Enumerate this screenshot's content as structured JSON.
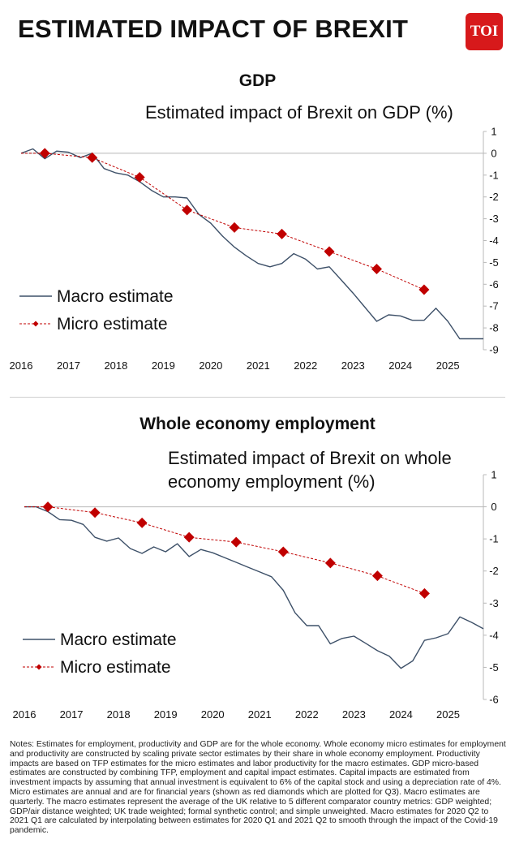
{
  "header": {
    "title": "ESTIMATED IMPACT OF BREXIT",
    "logo_text": "TOI"
  },
  "colors": {
    "macro": "#3d5068",
    "micro": "#c00000",
    "logo": "#d7191b"
  },
  "chart_data": [
    {
      "type": "line",
      "section_title": "GDP",
      "title": "Estimated impact of Brexit on GDP (%)",
      "xlim": [
        2016,
        2025.75
      ],
      "ylim": [
        -9,
        1
      ],
      "x_ticks": [
        "2016",
        "2017",
        "2018",
        "2019",
        "2020",
        "2021",
        "2022",
        "2023",
        "2024",
        "2025"
      ],
      "y_ticks": [
        "1",
        "0",
        "-1",
        "-2",
        "-3",
        "-4",
        "-5",
        "-6",
        "-7",
        "-8",
        "-9"
      ],
      "legend_position": "bottom-left",
      "series": [
        {
          "name": "Macro estimate",
          "style": "line",
          "x": [
            2016,
            2016.25,
            2016.5,
            2016.75,
            2017,
            2017.25,
            2017.5,
            2017.75,
            2018,
            2018.25,
            2018.5,
            2018.75,
            2019,
            2019.25,
            2019.5,
            2019.75,
            2020,
            2020.25,
            2020.5,
            2020.75,
            2021,
            2021.25,
            2021.5,
            2021.75,
            2022,
            2022.25,
            2022.5,
            2022.75,
            2023,
            2023.25,
            2023.5,
            2023.75,
            2024,
            2024.25,
            2024.5,
            2024.75,
            2025,
            2025.25,
            2025.5,
            2025.75
          ],
          "y": [
            0,
            0.2,
            -0.25,
            0.1,
            0.05,
            -0.2,
            0,
            -0.7,
            -0.9,
            -1.0,
            -1.3,
            -1.7,
            -2.0,
            -2.0,
            -2.05,
            -2.8,
            -3.2,
            -3.8,
            -4.3,
            -4.7,
            -5.05,
            -5.2,
            -5.05,
            -4.6,
            -4.85,
            -5.3,
            -5.2,
            -5.8,
            -6.4,
            -7.05,
            -7.7,
            -7.4,
            -7.45,
            -7.65,
            -7.65,
            -7.1,
            -7.7,
            -8.5,
            -8.5,
            -8.5
          ]
        },
        {
          "name": "Micro estimate",
          "style": "dashed-diamond",
          "x": [
            2016,
            2016.5,
            2017.5,
            2018.5,
            2019.5,
            2020.5,
            2021.5,
            2022.5,
            2023.5,
            2024.5
          ],
          "y": [
            0,
            0,
            -0.2,
            -1.1,
            -2.6,
            -3.4,
            -3.7,
            -4.5,
            -5.3,
            -6.25
          ]
        }
      ]
    },
    {
      "type": "line",
      "section_title": "Whole economy employment",
      "title_lines": [
        "Estimated impact of Brexit on whole",
        "economy employment (%)"
      ],
      "xlim": [
        2016,
        2025.75
      ],
      "ylim": [
        -6,
        1
      ],
      "x_ticks": [
        "2016",
        "2017",
        "2018",
        "2019",
        "2020",
        "2021",
        "2022",
        "2023",
        "2024",
        "2025"
      ],
      "y_ticks": [
        "1",
        "0",
        "-1",
        "-2",
        "-3",
        "-4",
        "-5",
        "-6"
      ],
      "legend_position": "bottom-left",
      "series": [
        {
          "name": "Macro estimate",
          "style": "line",
          "x": [
            2016,
            2016.25,
            2016.5,
            2016.75,
            2017,
            2017.25,
            2017.5,
            2017.75,
            2018,
            2018.25,
            2018.5,
            2018.75,
            2019,
            2019.25,
            2019.5,
            2019.75,
            2020,
            2020.25,
            2020.5,
            2020.75,
            2021,
            2021.25,
            2021.5,
            2021.75,
            2022,
            2022.25,
            2022.5,
            2022.75,
            2023,
            2023.25,
            2023.5,
            2023.75,
            2024,
            2024.25,
            2024.5,
            2024.75,
            2025,
            2025.25,
            2025.5,
            2025.75
          ],
          "y": [
            0,
            0,
            -0.15,
            -0.4,
            -0.42,
            -0.55,
            -0.95,
            -1.07,
            -0.97,
            -1.3,
            -1.45,
            -1.25,
            -1.4,
            -1.15,
            -1.55,
            -1.33,
            -1.43,
            -1.58,
            -1.73,
            -1.88,
            -2.03,
            -2.18,
            -2.6,
            -3.3,
            -3.7,
            -3.7,
            -4.27,
            -4.1,
            -4.03,
            -4.25,
            -4.48,
            -4.65,
            -5.03,
            -4.8,
            -4.16,
            -4.08,
            -3.95,
            -3.43,
            -3.6,
            -3.8
          ]
        },
        {
          "name": "Micro estimate",
          "style": "dashed-diamond",
          "x": [
            2016,
            2016.5,
            2017.5,
            2018.5,
            2019.5,
            2020.5,
            2021.5,
            2022.5,
            2023.5,
            2024.5
          ],
          "y": [
            0,
            0,
            -0.18,
            -0.5,
            -0.95,
            -1.1,
            -1.4,
            -1.75,
            -2.15,
            -2.7
          ]
        }
      ]
    }
  ],
  "notes": "Notes: Estimates for employment, productivity and GDP are for the whole economy. Whole economy micro estimates for employment and productivity are constructed by scaling private sector estimates by their share in whole economy employment. Productivity impacts are based on TFP estimates for the micro estimates and labor productivity for the macro estimates. GDP micro-based estimates are constructed by combining TFP, employment and capital impact estimates. Capital impacts are estimated from investment impacts by assuming that annual investment is equivalent to 6% of the capital stock and using a depreciation rate of 4%. Micro estimates are annual and are for financial years (shown as red diamonds which are plotted for Q3). Macro estimates are quarterly. The macro estimates represent the average of the UK relative to 5 different comparator country metrics: GDP weighted; GDP/air distance weighted; UK trade weighted; formal synthetic control; and simple unweighted. Macro estimates for 2020 Q2 to 2021 Q1 are calculated by interpolating between estimates for 2020 Q1 and 2021 Q2 to smooth through the impact of the Covid-19 pandemic."
}
